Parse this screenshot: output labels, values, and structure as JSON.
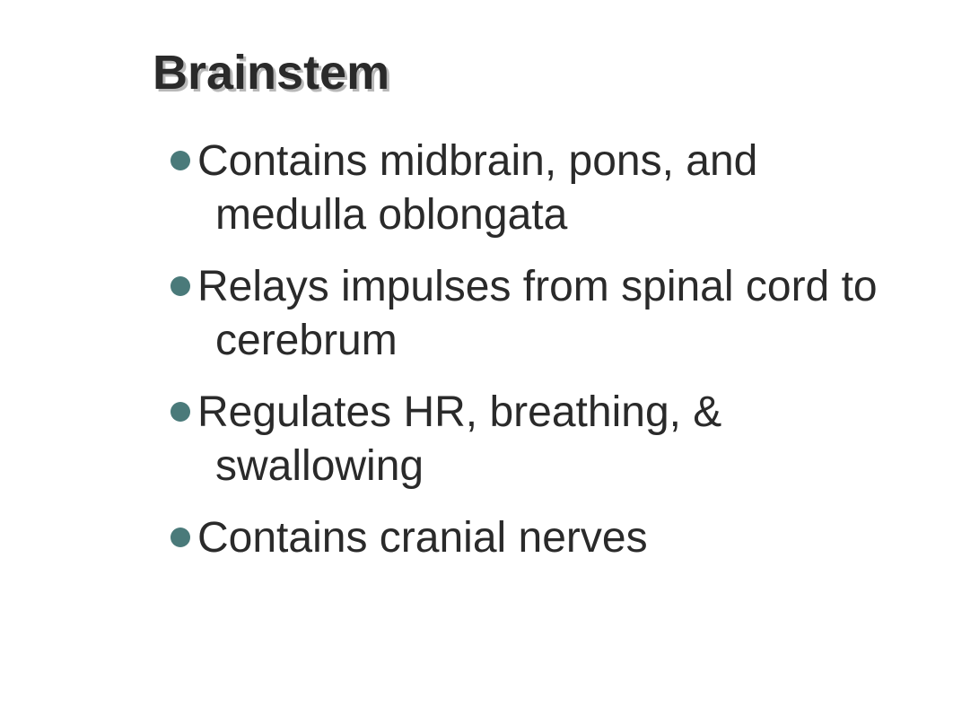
{
  "slide": {
    "title": "Brainstem",
    "title_color": "#2a2a2a",
    "title_shadow_color": "#b8b8b8",
    "title_fontsize": 54,
    "bullet_color": "#4a7a7a",
    "text_color": "#2a2a2a",
    "bullet_fontsize": 48,
    "background_color": "#ffffff",
    "bullets": [
      "Contains midbrain, pons, and medulla oblongata",
      "Relays impulses from spinal cord to cerebrum",
      "Regulates HR, breathing, & swallowing",
      "Contains cranial nerves"
    ]
  }
}
